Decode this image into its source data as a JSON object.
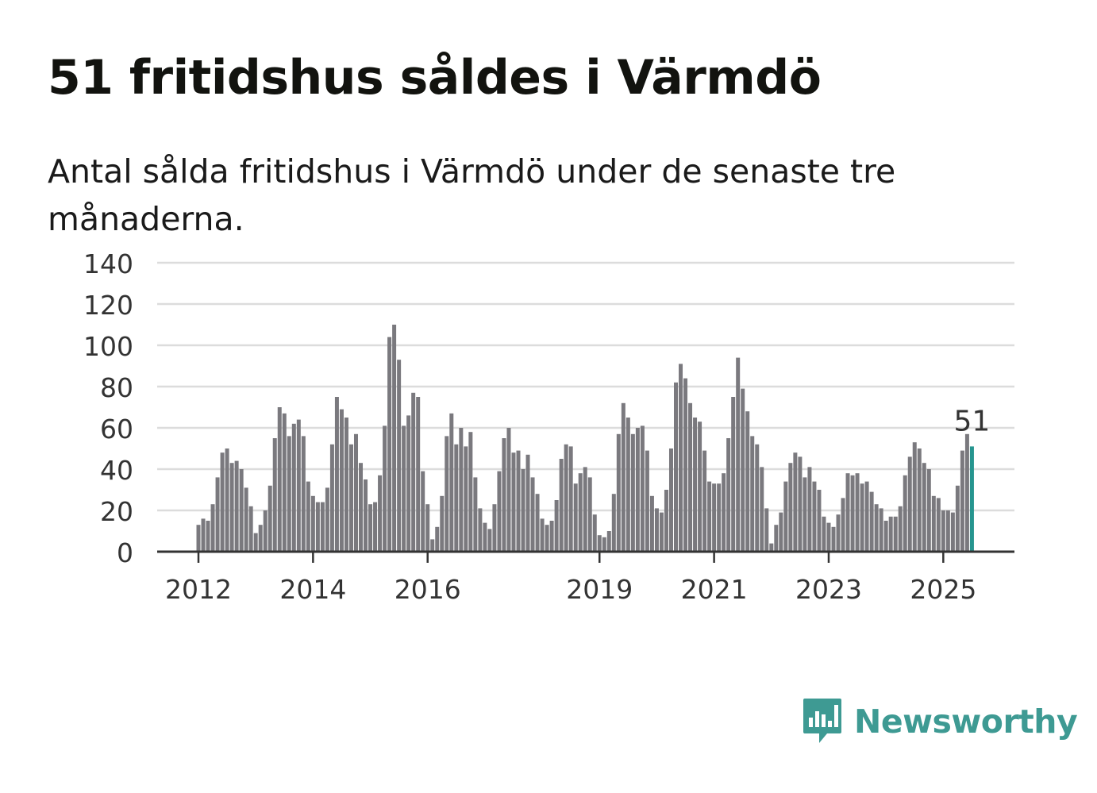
{
  "title": "51 fritidshus såldes i Värmdö",
  "subtitle": "Antal sålda fritidshus i Värmdö under de senaste tre månaderna.",
  "brand": {
    "name": "Newsworthy",
    "icon": "bar-chart-speech-bubble-icon",
    "color": "#3e9a93"
  },
  "chart_data": {
    "type": "bar",
    "ylim": [
      0,
      140
    ],
    "y_ticks": [
      0,
      20,
      40,
      60,
      80,
      100,
      120,
      140
    ],
    "x_ticks": [
      {
        "label": "2012",
        "index": 0
      },
      {
        "label": "2014",
        "index": 24
      },
      {
        "label": "2016",
        "index": 48
      },
      {
        "label": "2019",
        "index": 84
      },
      {
        "label": "2021",
        "index": 108
      },
      {
        "label": "2023",
        "index": 132
      },
      {
        "label": "2025",
        "index": 156
      }
    ],
    "bar_color": "#7a797e",
    "highlight_color": "#26958f",
    "highlight_index": 162,
    "annotation": {
      "index": 162,
      "label": "51"
    },
    "values": [
      13,
      16,
      15,
      23,
      36,
      48,
      50,
      43,
      44,
      40,
      31,
      22,
      9,
      13,
      20,
      32,
      55,
      70,
      67,
      56,
      62,
      64,
      56,
      34,
      27,
      24,
      24,
      31,
      52,
      75,
      69,
      65,
      52,
      57,
      43,
      35,
      23,
      24,
      37,
      61,
      104,
      110,
      93,
      61,
      66,
      77,
      75,
      39,
      23,
      6,
      12,
      27,
      56,
      67,
      52,
      60,
      51,
      58,
      36,
      21,
      14,
      11,
      23,
      39,
      55,
      60,
      48,
      49,
      40,
      47,
      36,
      28,
      16,
      13,
      15,
      25,
      45,
      52,
      51,
      33,
      38,
      41,
      36,
      18,
      8,
      7,
      10,
      28,
      57,
      72,
      65,
      57,
      60,
      61,
      49,
      27,
      21,
      19,
      30,
      50,
      82,
      91,
      84,
      72,
      65,
      63,
      49,
      34,
      33,
      33,
      38,
      55,
      75,
      94,
      79,
      68,
      56,
      52,
      41,
      21,
      4,
      13,
      19,
      34,
      43,
      48,
      46,
      36,
      41,
      34,
      30,
      17,
      14,
      12,
      18,
      26,
      38,
      37,
      38,
      33,
      34,
      29,
      23,
      21,
      15,
      17,
      17,
      22,
      37,
      46,
      53,
      50,
      43,
      40,
      27,
      26,
      20,
      20,
      19,
      32,
      49,
      57,
      51
    ]
  }
}
